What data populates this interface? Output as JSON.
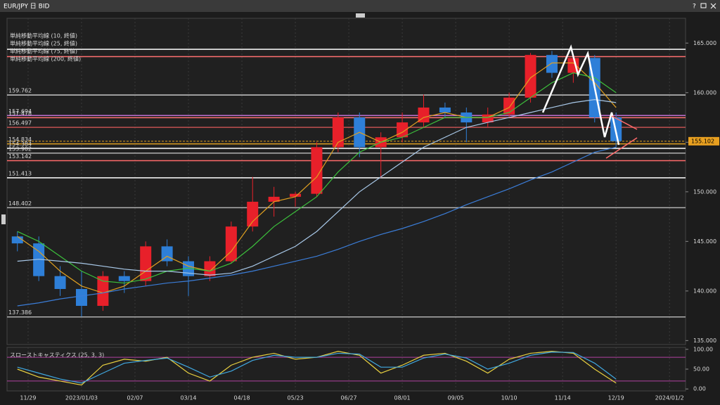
{
  "window": {
    "title": "EUR/JPY 日 BID",
    "help": "?"
  },
  "chart_data": [
    {
      "type": "candlestick",
      "x": [
        -1,
        1,
        3,
        5,
        7,
        9,
        11,
        13,
        15,
        17,
        19,
        21,
        23,
        25,
        27,
        29,
        31,
        33,
        35,
        37,
        39,
        41,
        43,
        45,
        47,
        49,
        51,
        53,
        55
      ],
      "candles": [
        [
          145.5,
          146.0,
          144.0,
          144.8
        ],
        [
          144.8,
          145.5,
          141.0,
          141.5
        ],
        [
          141.5,
          142.5,
          139.5,
          140.2
        ],
        [
          140.2,
          142.0,
          137.4,
          138.5
        ],
        [
          138.5,
          142.0,
          138.0,
          141.5
        ],
        [
          141.5,
          142.0,
          139.8,
          141.0
        ],
        [
          141.0,
          145.0,
          140.5,
          144.5
        ],
        [
          144.5,
          145.2,
          142.5,
          143.0
        ],
        [
          143.0,
          143.5,
          139.5,
          141.5
        ],
        [
          141.5,
          143.5,
          141.0,
          143.0
        ],
        [
          143.0,
          147.0,
          142.8,
          146.5
        ],
        [
          146.5,
          151.5,
          146.0,
          149.0
        ],
        [
          149.0,
          150.5,
          147.5,
          149.5
        ],
        [
          149.5,
          150.0,
          148.5,
          149.8
        ],
        [
          149.8,
          155.0,
          149.5,
          154.5
        ],
        [
          154.5,
          158.0,
          154.0,
          157.5
        ],
        [
          157.5,
          158.0,
          153.5,
          154.5
        ],
        [
          154.5,
          156.0,
          151.4,
          155.5
        ],
        [
          155.5,
          158.0,
          155.0,
          157.0
        ],
        [
          157.0,
          159.8,
          156.5,
          158.5
        ],
        [
          158.5,
          159.0,
          157.5,
          158.0
        ],
        [
          158.0,
          158.5,
          155.0,
          157.0
        ],
        [
          157.0,
          158.5,
          156.5,
          157.8
        ],
        [
          157.8,
          160.0,
          157.5,
          159.5
        ],
        [
          159.5,
          164.0,
          159.0,
          163.8
        ],
        [
          163.8,
          164.2,
          161.5,
          162.0
        ],
        [
          162.0,
          163.8,
          161.0,
          163.5
        ],
        [
          163.5,
          163.8,
          157.0,
          157.5
        ],
        [
          157.5,
          158.0,
          154.5,
          155.1
        ]
      ],
      "up_color": "#e8202a",
      "down_color": "#2e7fd8",
      "series": [
        {
          "name": "単純移動平均線 (10, 終値)",
          "color": "#e0a020",
          "values": [
            145.5,
            144,
            142,
            140.5,
            139.8,
            140.5,
            142,
            143.5,
            142.5,
            142,
            144,
            147,
            149,
            149.5,
            151.5,
            155,
            156,
            155,
            156,
            157.5,
            158,
            157.5,
            157.5,
            158.5,
            161.5,
            163,
            163,
            161,
            158.5
          ]
        },
        {
          "name": "単純移動平均線 (25, 終値)",
          "color": "#3cc03c",
          "values": [
            146,
            145,
            143.5,
            142,
            141,
            140.8,
            141.2,
            142,
            142.3,
            142,
            142.8,
            144.5,
            146.5,
            148,
            149.5,
            152,
            154,
            155,
            155.5,
            156.5,
            157.5,
            157.5,
            157.5,
            158,
            159.5,
            161,
            162,
            161.5,
            160
          ]
        },
        {
          "name": "単純移動平均線 (75, 終値)",
          "color": "#a8c8e8",
          "values": [
            143,
            143.2,
            143,
            142.8,
            142.5,
            142.2,
            142,
            142,
            141.8,
            141.6,
            141.8,
            142.5,
            143.5,
            144.5,
            146,
            148,
            150,
            151.5,
            153,
            154.5,
            155.5,
            156.5,
            157,
            157.5,
            158,
            158.5,
            159,
            159.3,
            159
          ]
        },
        {
          "name": "単純移動平均線 (200, 終値)",
          "color": "#3b7dd8",
          "values": [
            138.5,
            138.8,
            139.2,
            139.5,
            139.8,
            140.2,
            140.5,
            140.8,
            141,
            141.3,
            141.6,
            142,
            142.5,
            143,
            143.5,
            144.2,
            145,
            145.7,
            146.3,
            147,
            147.8,
            148.7,
            149.5,
            150.3,
            151.2,
            152,
            153,
            154,
            154.5
          ]
        }
      ],
      "levels": [
        {
          "value": 159.762,
          "color": "#c8c8c8"
        },
        {
          "value": 157.694,
          "color": "#c070d0"
        },
        {
          "value": 157.478,
          "color": "#ff7070"
        },
        {
          "value": 156.497,
          "color": "#c05050"
        },
        {
          "value": 154.834,
          "color": "#e0a020"
        },
        {
          "value": 154.384,
          "color": "#ffffff"
        },
        {
          "value": 153.902,
          "color": "#b0b0b0"
        },
        {
          "value": 153.142,
          "color": "#ff6a6a"
        },
        {
          "value": 151.413,
          "color": "#ffffff"
        },
        {
          "value": 148.402,
          "color": "#b0b0b0"
        },
        {
          "value": 137.386,
          "color": "#b0b0b0"
        }
      ],
      "unlabeled_levels": [
        {
          "value": 164.37,
          "color": "#ffffff"
        },
        {
          "value": 163.64,
          "color": "#ff7070"
        }
      ],
      "last_price": 155.102,
      "xlim": [
        -1.97,
        61.5
      ],
      "ylim": [
        134.6,
        167.5
      ],
      "yticks": [
        {
          "value": 135,
          "label": "135.000"
        },
        {
          "value": 140,
          "label": "140.000"
        },
        {
          "value": 145,
          "label": "145.000"
        },
        {
          "value": 150,
          "label": "150.000"
        },
        {
          "value": 155,
          "label": "155.000"
        },
        {
          "value": 160,
          "label": "160.000"
        },
        {
          "value": 165,
          "label": "165.000"
        }
      ]
    },
    {
      "type": "line",
      "title": "スローストキャスティクス (25, 3, 3)",
      "x": [
        -1,
        1,
        3,
        5,
        7,
        9,
        11,
        13,
        15,
        17,
        19,
        21,
        23,
        25,
        27,
        29,
        31,
        33,
        35,
        37,
        39,
        41,
        43,
        45,
        47,
        49,
        51,
        53,
        55
      ],
      "series": [
        {
          "color": "#e8d040",
          "values": [
            50,
            30,
            20,
            10,
            60,
            75,
            70,
            80,
            40,
            20,
            60,
            80,
            90,
            75,
            80,
            95,
            85,
            40,
            60,
            85,
            90,
            70,
            40,
            75,
            90,
            95,
            90,
            50,
            15
          ]
        },
        {
          "color": "#40a8e0",
          "values": [
            55,
            40,
            25,
            15,
            40,
            65,
            72,
            78,
            55,
            30,
            45,
            72,
            85,
            80,
            80,
            90,
            88,
            55,
            55,
            78,
            88,
            78,
            50,
            65,
            85,
            93,
            92,
            65,
            25
          ]
        }
      ],
      "levels": [
        20,
        80
      ],
      "xlim": [
        -1.97,
        61.5
      ],
      "ylim": [
        -5,
        105
      ],
      "yticks": [
        {
          "value": 0,
          "label": "0.00"
        },
        {
          "value": 50,
          "label": "50.00"
        },
        {
          "value": 100,
          "label": "100.00"
        }
      ],
      "xticks": [
        {
          "value": 0,
          "label": "11/29"
        },
        {
          "value": 5,
          "label": "2023/01/03"
        },
        {
          "value": 10,
          "label": "02/07"
        },
        {
          "value": 15,
          "label": "03/14"
        },
        {
          "value": 20,
          "label": "04/18"
        },
        {
          "value": 25,
          "label": "05/23"
        },
        {
          "value": 30,
          "label": "06/27"
        },
        {
          "value": 35,
          "label": "08/01"
        },
        {
          "value": 40,
          "label": "09/05"
        },
        {
          "value": 45,
          "label": "10/10"
        },
        {
          "value": 50,
          "label": "11/14"
        },
        {
          "value": 55,
          "label": "12/19"
        },
        {
          "value": 60,
          "label": "2024/01/2"
        }
      ]
    }
  ]
}
